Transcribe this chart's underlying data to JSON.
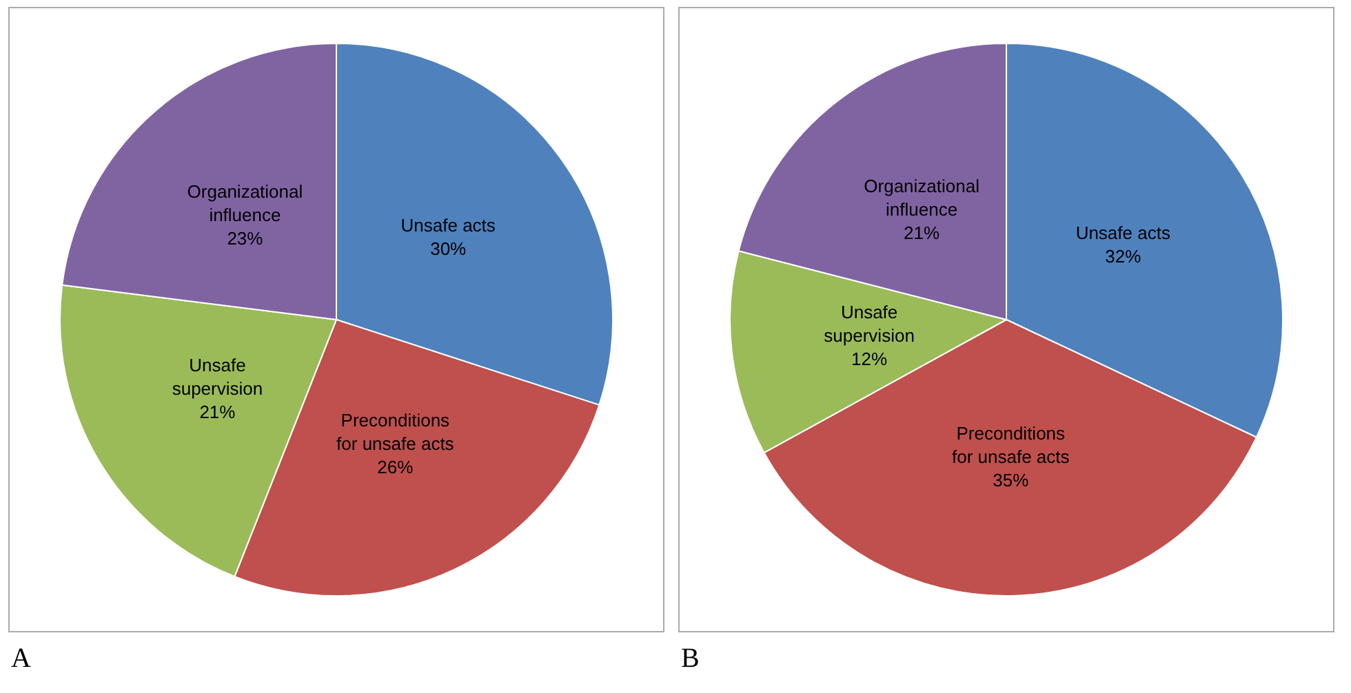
{
  "chart_data": [
    {
      "type": "pie",
      "categories": [
        "Unsafe acts",
        "Preconditions for unsafe acts",
        "Unsafe supervision",
        "Organizational influence"
      ],
      "values": [
        30,
        26,
        21,
        23
      ],
      "colors": [
        "#4f81bd",
        "#c0504d",
        "#9bbb59",
        "#8064a2"
      ],
      "value_labels": [
        "30%",
        "26%",
        "21%",
        "23%"
      ],
      "annotations": [
        "A"
      ]
    },
    {
      "type": "pie",
      "categories": [
        "Unsafe acts",
        "Preconditions for unsafe acts",
        "Unsafe supervision",
        "Organizational influence"
      ],
      "values": [
        32,
        35,
        12,
        21
      ],
      "colors": [
        "#4f81bd",
        "#c0504d",
        "#9bbb59",
        "#8064a2"
      ],
      "value_labels": [
        "32%",
        "35%",
        "12%",
        "21%"
      ],
      "annotations": [
        "B"
      ]
    }
  ]
}
